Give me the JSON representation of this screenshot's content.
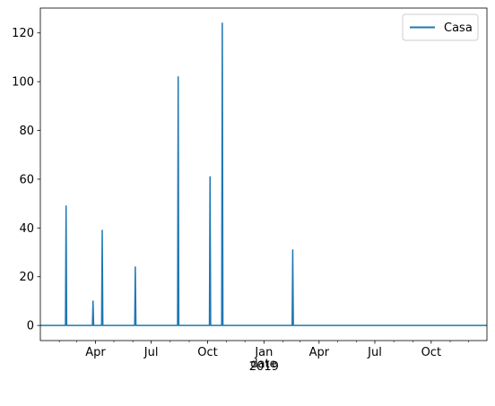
{
  "chart_data": {
    "type": "line",
    "title": "",
    "xlabel": "date",
    "ylabel": "",
    "xlim": [
      "2018-01-01",
      "2019-12-31"
    ],
    "ylim": [
      -6.2,
      130.2
    ],
    "yticks": [
      0,
      20,
      40,
      60,
      80,
      100,
      120
    ],
    "xticks": [
      {
        "date": "2018-04-01",
        "label": "Apr"
      },
      {
        "date": "2018-07-01",
        "label": "Jul"
      },
      {
        "date": "2018-10-01",
        "label": "Oct"
      },
      {
        "date": "2019-01-01",
        "label": "Jan",
        "sublabel": "2019"
      },
      {
        "date": "2019-04-01",
        "label": "Apr"
      },
      {
        "date": "2019-07-01",
        "label": "Jul"
      },
      {
        "date": "2019-10-01",
        "label": "Oct"
      }
    ],
    "minor_xticks": [
      "2018-02-01",
      "2018-03-01",
      "2018-05-01",
      "2018-06-01",
      "2018-08-01",
      "2018-09-01",
      "2018-11-01",
      "2018-12-01",
      "2019-02-01",
      "2019-03-01",
      "2019-05-01",
      "2019-06-01",
      "2019-08-01",
      "2019-09-01",
      "2019-11-01",
      "2019-12-01"
    ],
    "grid": false,
    "legend": {
      "position": "top-right"
    },
    "series": [
      {
        "name": "Casa",
        "color": "#1f77b4",
        "baseline": 0,
        "spikes": [
          {
            "date": "2018-02-12",
            "value": 49
          },
          {
            "date": "2018-03-28",
            "value": 10
          },
          {
            "date": "2018-04-12",
            "value": 39
          },
          {
            "date": "2018-06-05",
            "value": 24
          },
          {
            "date": "2018-08-14",
            "value": 102
          },
          {
            "date": "2018-10-05",
            "value": 61
          },
          {
            "date": "2018-10-25",
            "value": 124
          },
          {
            "date": "2019-02-17",
            "value": 31
          }
        ]
      }
    ]
  }
}
